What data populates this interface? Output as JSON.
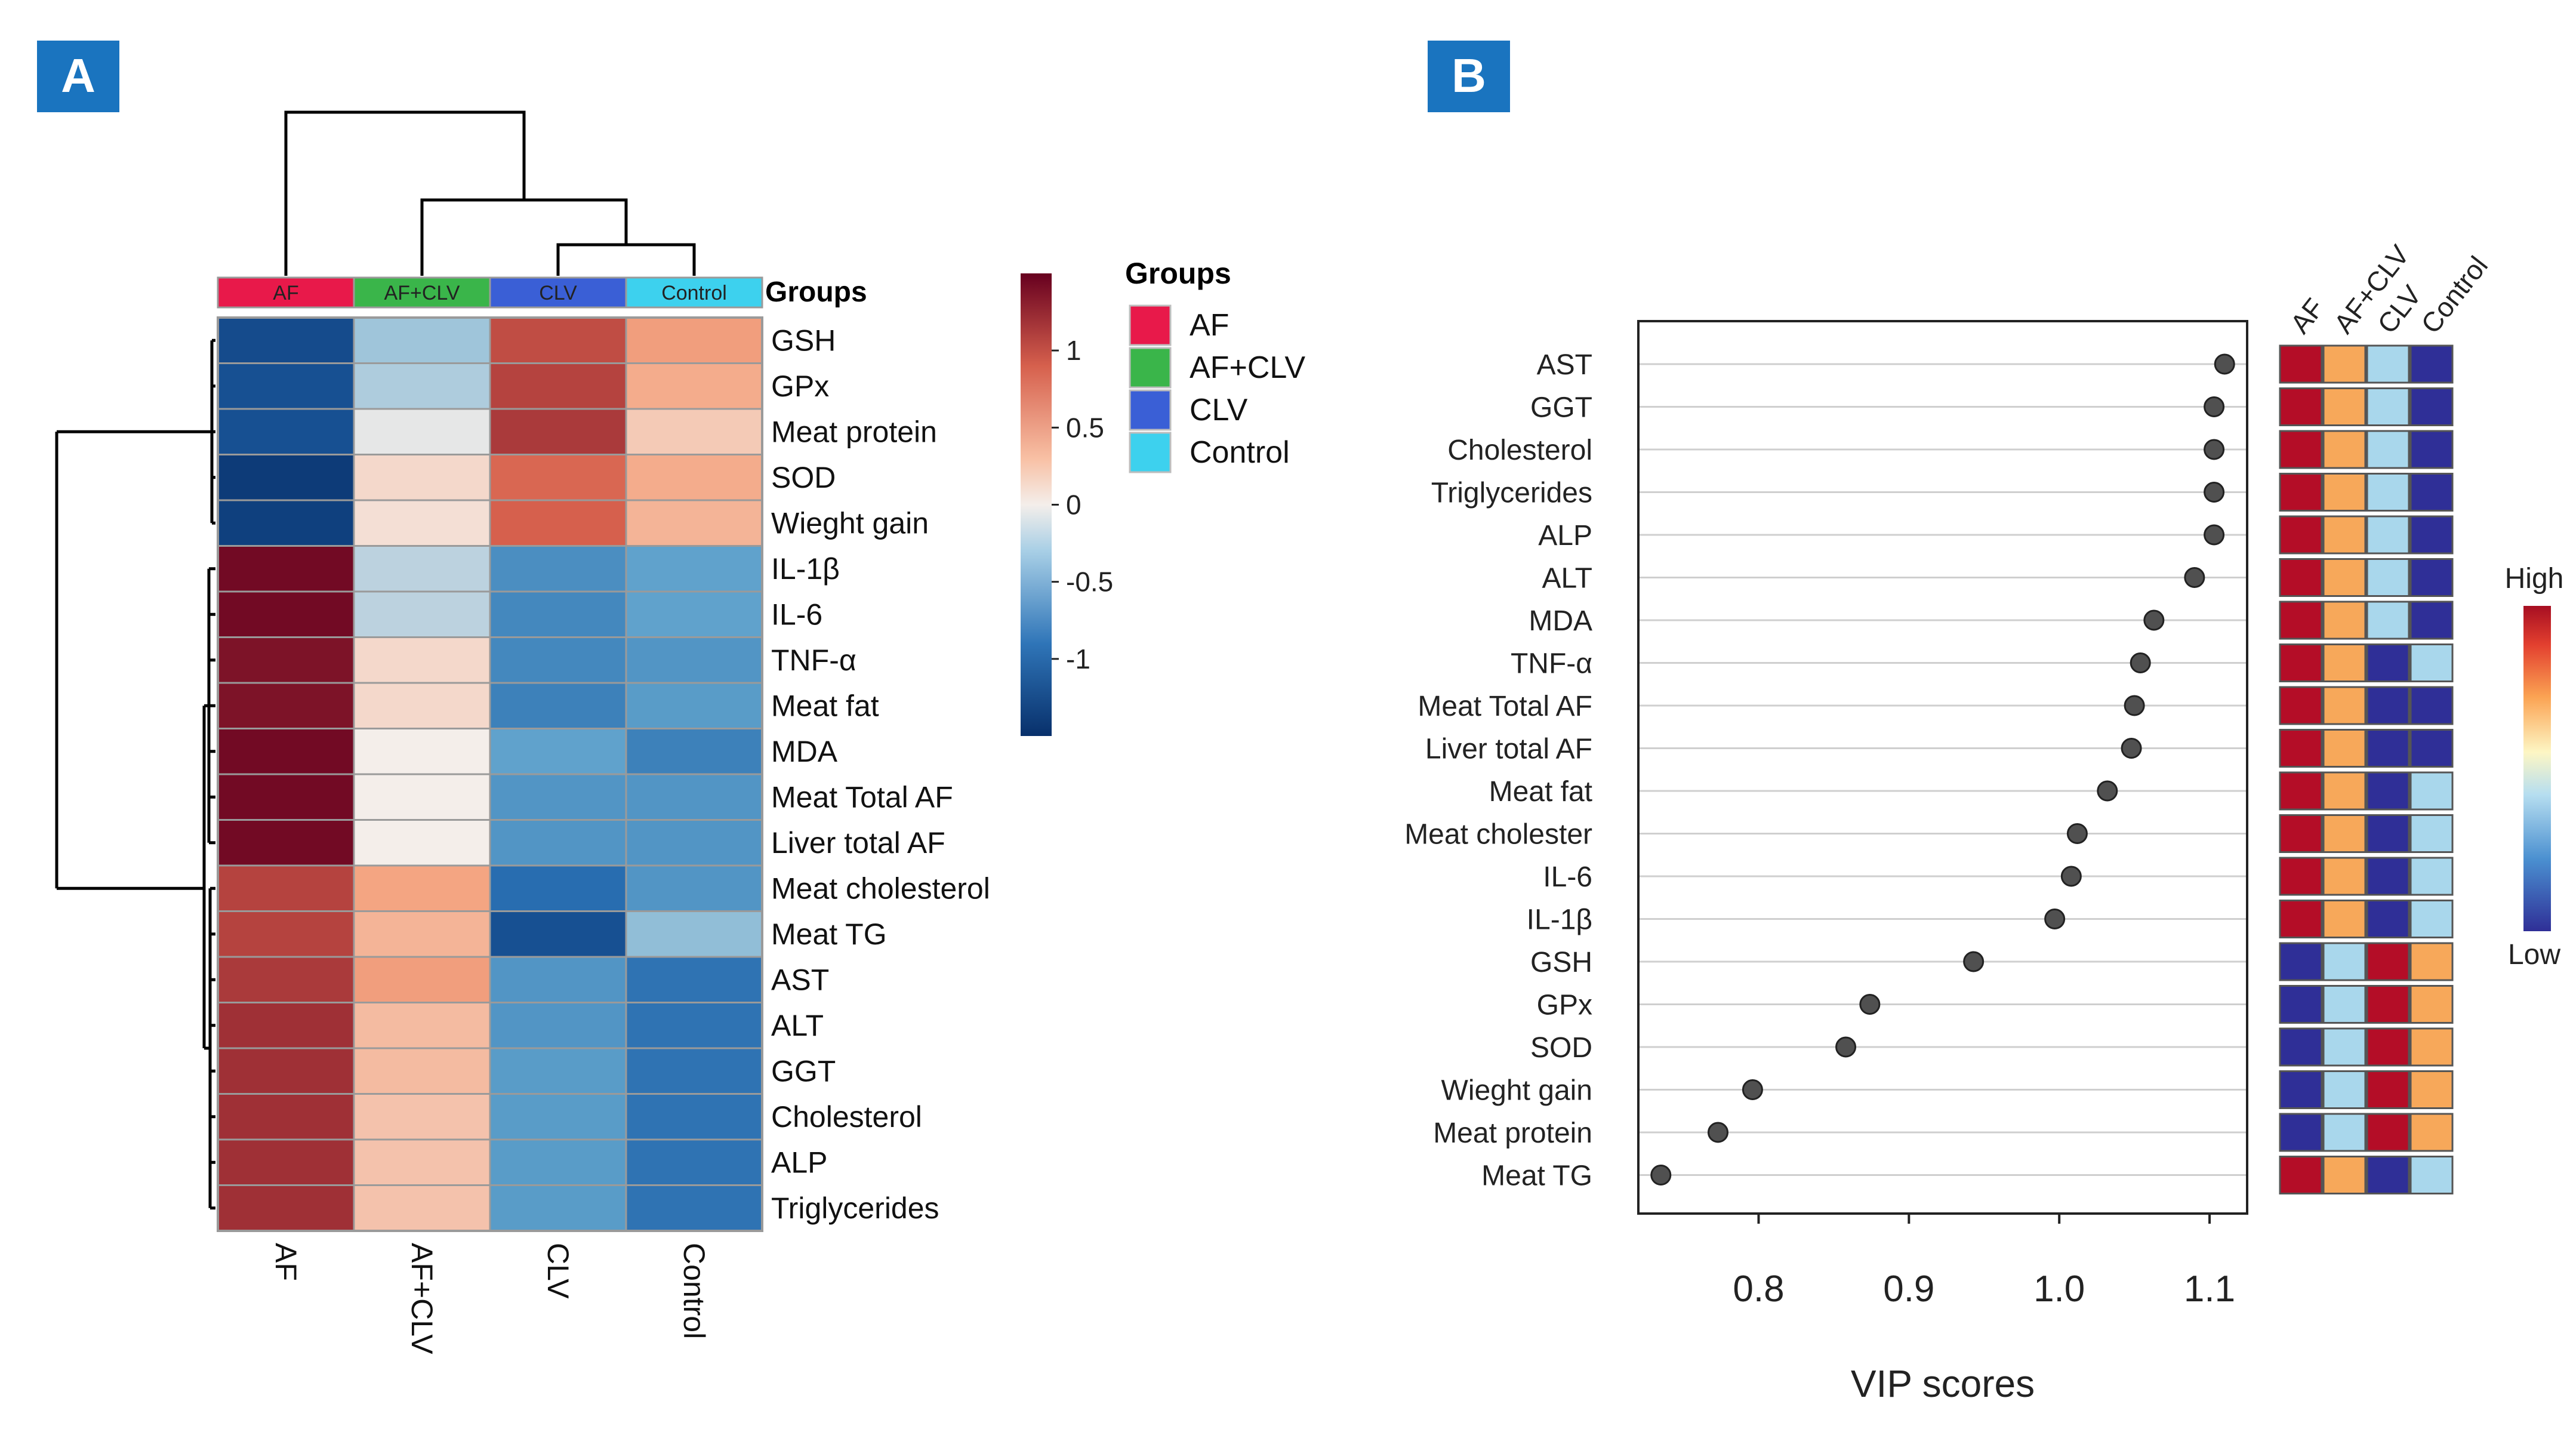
{
  "panel_labels": {
    "a": "A",
    "b": "B"
  },
  "colors": {
    "AF": "#e8194a",
    "AF+CLV": "#3ab54a",
    "CLV": "#3a5fd6",
    "Control": "#3dd1ee",
    "panel_label_bg": "#1a74bf",
    "dot": "#505050"
  },
  "chart_data": [
    {
      "type": "heatmap",
      "title": "",
      "columns": [
        "AF",
        "AF+CLV",
        "CLV",
        "Control"
      ],
      "column_annotation_title": "Groups",
      "rows": [
        "GSH",
        "GPx",
        "Meat protein",
        "SOD",
        "Wieght gain",
        "IL-1β",
        "IL-6",
        "TNF-α",
        "Meat fat",
        "MDA",
        "Meat Total AF",
        "Liver total AF",
        "Meat cholesterol",
        "Meat TG",
        "AST",
        "ALT",
        "GGT",
        "Cholesterol",
        "ALP",
        "Triglycerides"
      ],
      "values": [
        [
          -1.25,
          -0.3,
          1.1,
          0.55
        ],
        [
          -1.2,
          -0.25,
          1.15,
          0.45
        ],
        [
          -1.2,
          -0.05,
          1.2,
          0.25
        ],
        [
          -1.4,
          0.15,
          0.95,
          0.45
        ],
        [
          -1.35,
          0.1,
          1.0,
          0.4
        ],
        [
          1.45,
          -0.2,
          -0.7,
          -0.55
        ],
        [
          1.45,
          -0.2,
          -0.75,
          -0.55
        ],
        [
          1.4,
          0.15,
          -0.75,
          -0.65
        ],
        [
          1.4,
          0.15,
          -0.8,
          -0.6
        ],
        [
          1.45,
          0.0,
          -0.55,
          -0.8
        ],
        [
          1.45,
          0.0,
          -0.65,
          -0.65
        ],
        [
          1.45,
          0.0,
          -0.65,
          -0.65
        ],
        [
          1.15,
          0.5,
          -0.95,
          -0.65
        ],
        [
          1.15,
          0.4,
          -1.2,
          -0.35
        ],
        [
          1.2,
          0.55,
          -0.65,
          -0.9
        ],
        [
          1.25,
          0.35,
          -0.65,
          -0.9
        ],
        [
          1.25,
          0.35,
          -0.6,
          -0.9
        ],
        [
          1.25,
          0.3,
          -0.6,
          -0.9
        ],
        [
          1.25,
          0.3,
          -0.6,
          -0.9
        ],
        [
          1.25,
          0.3,
          -0.6,
          -0.9
        ]
      ],
      "colorbar": {
        "range": [
          -1.5,
          1.5
        ],
        "ticks": [
          1,
          0.5,
          0,
          -0.5,
          -1
        ],
        "tick_labels": [
          "1",
          "0.5",
          "0",
          "-0.5",
          "-1"
        ]
      },
      "legend": {
        "title": "Groups",
        "entries": [
          "AF",
          "AF+CLV",
          "CLV",
          "Control"
        ],
        "placement": "right"
      },
      "column_dendrogram": "((AF),((AF+CLV),((CLV),(Control))))",
      "row_dendrogram": "(GSH,GPx,Meat protein,SOD,Wieght gain) vs (IL-1β ... Triglycerides)"
    },
    {
      "type": "scatter",
      "title": "",
      "xlabel": "VIP scores",
      "ylabel": "",
      "xlim": [
        0.72,
        1.125
      ],
      "xticks": [
        0.8,
        0.9,
        1.0,
        1.1
      ],
      "xtick_labels": [
        "0.8",
        "0.9",
        "1.0",
        "1.1"
      ],
      "grid": "horizontal",
      "categories": [
        "AST",
        "GGT",
        "Cholesterol",
        "Triglycerides",
        "ALP",
        "ALT",
        "MDA",
        "TNF-α",
        "Meat Total AF",
        "Liver total AF",
        "Meat fat",
        "Meat cholester",
        "IL-6",
        "IL-1β",
        "GSH",
        "GPx",
        "SOD",
        "Wieght gain",
        "Meat protein",
        "Meat TG"
      ],
      "values": [
        1.11,
        1.103,
        1.103,
        1.103,
        1.103,
        1.09,
        1.063,
        1.054,
        1.05,
        1.048,
        1.032,
        1.012,
        1.008,
        0.997,
        0.943,
        0.874,
        0.858,
        0.796,
        0.773,
        0.735
      ],
      "side_columns": [
        "AF",
        "AF+CLV",
        "CLV",
        "Control"
      ],
      "side_levels": [
        [
          "high",
          "mid-high",
          "mid-low",
          "low"
        ],
        [
          "high",
          "mid-high",
          "mid-low",
          "low"
        ],
        [
          "high",
          "mid-high",
          "mid-low",
          "low"
        ],
        [
          "high",
          "mid-high",
          "mid-low",
          "low"
        ],
        [
          "high",
          "mid-high",
          "mid-low",
          "low"
        ],
        [
          "high",
          "mid-high",
          "mid-low",
          "low"
        ],
        [
          "high",
          "mid-high",
          "mid-low",
          "low"
        ],
        [
          "high",
          "mid-high",
          "low",
          "mid-low"
        ],
        [
          "high",
          "mid-high",
          "low",
          "low"
        ],
        [
          "high",
          "mid-high",
          "low",
          "low"
        ],
        [
          "high",
          "mid-high",
          "low",
          "mid-low"
        ],
        [
          "high",
          "mid-high",
          "low",
          "mid-low"
        ],
        [
          "high",
          "mid-high",
          "low",
          "mid-low"
        ],
        [
          "high",
          "mid-high",
          "low",
          "mid-low"
        ],
        [
          "low",
          "mid-low",
          "high",
          "mid-high"
        ],
        [
          "low",
          "mid-low",
          "high",
          "mid-high"
        ],
        [
          "low",
          "mid-low",
          "high",
          "mid-high"
        ],
        [
          "low",
          "mid-low",
          "high",
          "mid-high"
        ],
        [
          "low",
          "mid-low",
          "high",
          "mid-high"
        ],
        [
          "high",
          "mid-high",
          "low",
          "mid-low"
        ]
      ],
      "level_colors": {
        "high": "#b40d27",
        "mid-high": "#f7a85a",
        "mid-low": "#a9d7ec",
        "low": "#2f2f97"
      },
      "colorbar": {
        "top_label": "High",
        "bottom_label": "Low"
      }
    }
  ]
}
